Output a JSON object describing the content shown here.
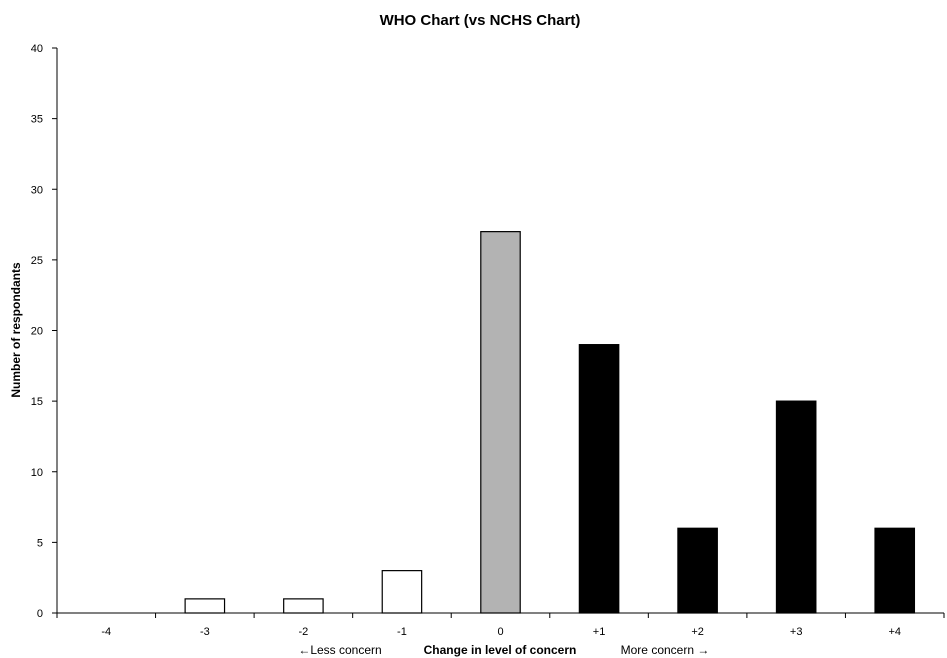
{
  "chart_data": {
    "type": "bar",
    "title": "WHO Chart (vs NCHS Chart)",
    "xlabel": "Change in level of concern",
    "ylabel": "Number of respondants",
    "left_note": "←Less concern",
    "right_note": "More concern →",
    "categories": [
      "-4",
      "-3",
      "-2",
      "-1",
      "0",
      "+1",
      "+2",
      "+3",
      "+4"
    ],
    "values": [
      0,
      1,
      1,
      3,
      27,
      19,
      6,
      15,
      6
    ],
    "bar_colors": [
      "#ffffff",
      "#ffffff",
      "#ffffff",
      "#ffffff",
      "#b3b3b3",
      "#000000",
      "#000000",
      "#000000",
      "#000000"
    ],
    "ylim": [
      0,
      40
    ],
    "yticks": [
      0,
      5,
      10,
      15,
      20,
      25,
      30,
      35,
      40
    ],
    "grid": false,
    "legend": "none"
  }
}
